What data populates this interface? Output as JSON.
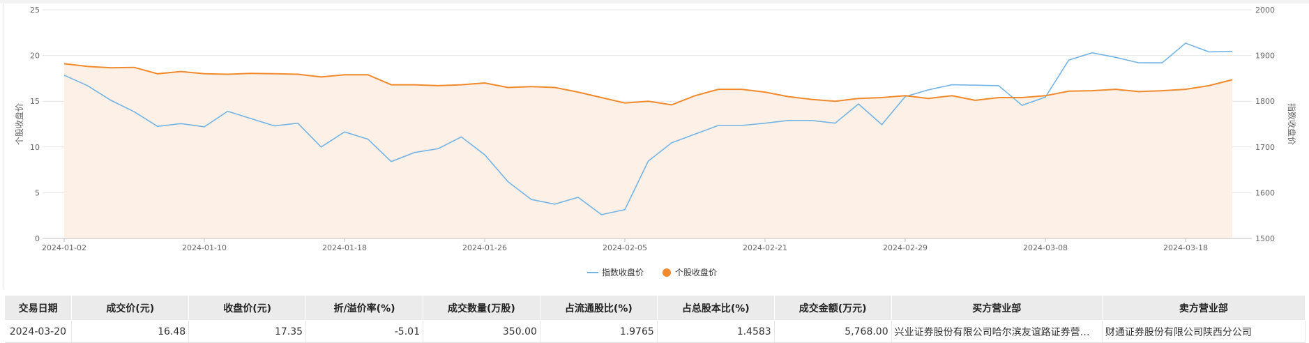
{
  "chart_data": {
    "type": "line",
    "title": "",
    "x": [
      "2024-01-02",
      "2024-01-03",
      "2024-01-04",
      "2024-01-05",
      "2024-01-08",
      "2024-01-09",
      "2024-01-10",
      "2024-01-11",
      "2024-01-12",
      "2024-01-15",
      "2024-01-16",
      "2024-01-17",
      "2024-01-18",
      "2024-01-19",
      "2024-01-22",
      "2024-01-23",
      "2024-01-24",
      "2024-01-25",
      "2024-01-26",
      "2024-01-29",
      "2024-01-30",
      "2024-01-31",
      "2024-02-01",
      "2024-02-02",
      "2024-02-05",
      "2024-02-06",
      "2024-02-07",
      "2024-02-08",
      "2024-02-19",
      "2024-02-20",
      "2024-02-21",
      "2024-02-22",
      "2024-02-23",
      "2024-02-26",
      "2024-02-27",
      "2024-02-28",
      "2024-02-29",
      "2024-03-01",
      "2024-03-04",
      "2024-03-05",
      "2024-03-06",
      "2024-03-07",
      "2024-03-08",
      "2024-03-11",
      "2024-03-12",
      "2024-03-13",
      "2024-03-14",
      "2024-03-15",
      "2024-03-18",
      "2024-03-19",
      "2024-03-20"
    ],
    "x_tick_labels": [
      "2024-01-02",
      "2024-01-10",
      "2024-01-18",
      "2024-01-26",
      "2024-02-05",
      "2024-02-21",
      "2024-02-29",
      "2024-03-08",
      "2024-03-18"
    ],
    "y_left": {
      "label": "个股收盘价",
      "ticks": [
        0,
        5,
        10,
        15,
        20,
        25
      ],
      "ylim": [
        0,
        25
      ]
    },
    "y_right": {
      "label": "指数收盘价",
      "ticks": [
        1500,
        1600,
        1700,
        1800,
        1900,
        2000
      ],
      "ylim": [
        1500,
        2000
      ]
    },
    "grid": true,
    "legend_position": "bottom-center",
    "series": [
      {
        "name": "指数收盘价",
        "axis": "right",
        "color": "#74b4e4",
        "marker": "line",
        "values": [
          1857,
          1834,
          1802,
          1777,
          1745,
          1751,
          1744,
          1778,
          1762,
          1746,
          1752,
          1700,
          1733,
          1717,
          1668,
          1688,
          1696,
          1722,
          1683,
          1624,
          1585,
          1575,
          1590,
          1552,
          1563,
          1669,
          1709,
          1728,
          1747,
          1747,
          1752,
          1758,
          1758,
          1752,
          1794,
          1749,
          1810,
          1825,
          1836,
          1835,
          1834,
          1791,
          1809,
          1890,
          1906,
          1896,
          1884,
          1884,
          1927,
          1908,
          1909
        ]
      },
      {
        "name": "个股收盘价",
        "axis": "left",
        "color": "#f08a2c",
        "marker": "dot",
        "fill": "#fdf0e6",
        "values": [
          19.1,
          18.8,
          18.65,
          18.7,
          18.0,
          18.25,
          18.0,
          17.95,
          18.05,
          18.0,
          17.95,
          17.65,
          17.9,
          17.9,
          16.8,
          16.8,
          16.7,
          16.8,
          17.0,
          16.5,
          16.6,
          16.5,
          16.0,
          15.4,
          14.8,
          15.0,
          14.6,
          15.6,
          16.3,
          16.3,
          16.0,
          15.5,
          15.2,
          15.0,
          15.3,
          15.4,
          15.6,
          15.3,
          15.6,
          15.1,
          15.4,
          15.4,
          15.6,
          16.1,
          16.15,
          16.3,
          16.05,
          16.15,
          16.3,
          16.7,
          17.35
        ]
      }
    ]
  },
  "table": {
    "headers": [
      "交易日期",
      "成交价(元)",
      "收盘价(元)",
      "折/溢价率(%)",
      "成交数量(万股)",
      "占流通股比(%)",
      "占总股本比(%)",
      "成交金额(万元)",
      "买方营业部",
      "卖方营业部"
    ],
    "rows": [
      [
        "2024-03-20",
        "16.48",
        "17.35",
        "-5.01",
        "350.00",
        "1.9765",
        "1.4583",
        "5,768.00",
        "兴业证券股份有限公司哈尔滨友谊路证券营业部",
        "财通证券股份有限公司陕西分公司"
      ]
    ]
  }
}
